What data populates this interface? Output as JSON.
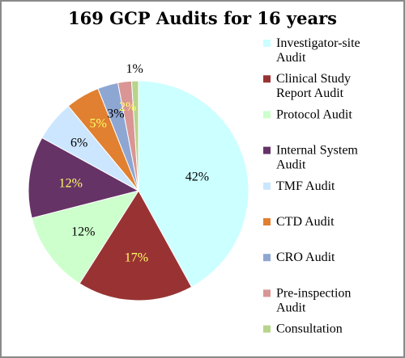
{
  "chart_data": {
    "type": "pie",
    "title": "169 GCP Audits  for 16 years",
    "legend_position": "right",
    "start_angle_deg": 0,
    "direction": "clockwise",
    "slices": [
      {
        "name": "Investigator-site Audit",
        "value": 42,
        "label": "42%",
        "color": "#ccffff",
        "label_color": "#000000"
      },
      {
        "name": "Clinical Study Report Audit",
        "value": 17,
        "label": "17%",
        "color": "#993333",
        "label_color": "#ffff66"
      },
      {
        "name": "Protocol Audit",
        "value": 12,
        "label": "12%",
        "color": "#ccffcc",
        "label_color": "#000000"
      },
      {
        "name": "Internal System Audit",
        "value": 12,
        "label": "12%",
        "color": "#663366",
        "label_color": "#ffff66"
      },
      {
        "name": "TMF Audit",
        "value": 6,
        "label": "6%",
        "color": "#cce6ff",
        "label_color": "#000000"
      },
      {
        "name": "CTD Audit",
        "value": 5,
        "label": "5%",
        "color": "#e08030",
        "label_color": "#ffff66"
      },
      {
        "name": "CRO Audit",
        "value": 3,
        "label": "3%",
        "color": "#8ea6d2",
        "label_color": "#000000"
      },
      {
        "name": "Pre-inspection Audit",
        "value": 2,
        "label": "2%",
        "color": "#d99694",
        "label_color": "#ffff66"
      },
      {
        "name": "Consultation",
        "value": 1,
        "label": "1%",
        "color": "#b7d48c",
        "label_color": "#000000"
      }
    ],
    "legend_lines": [
      [
        "Investigator-site",
        "Audit"
      ],
      [
        "Clinical Study",
        "Report Audit"
      ],
      [
        "Protocol Audit"
      ],
      [
        "Internal System",
        "Audit"
      ],
      [
        "TMF Audit"
      ],
      [
        "CTD Audit"
      ],
      [
        "CRO Audit"
      ],
      [
        "Pre-inspection",
        "Audit"
      ],
      [
        "Consultation"
      ]
    ]
  }
}
